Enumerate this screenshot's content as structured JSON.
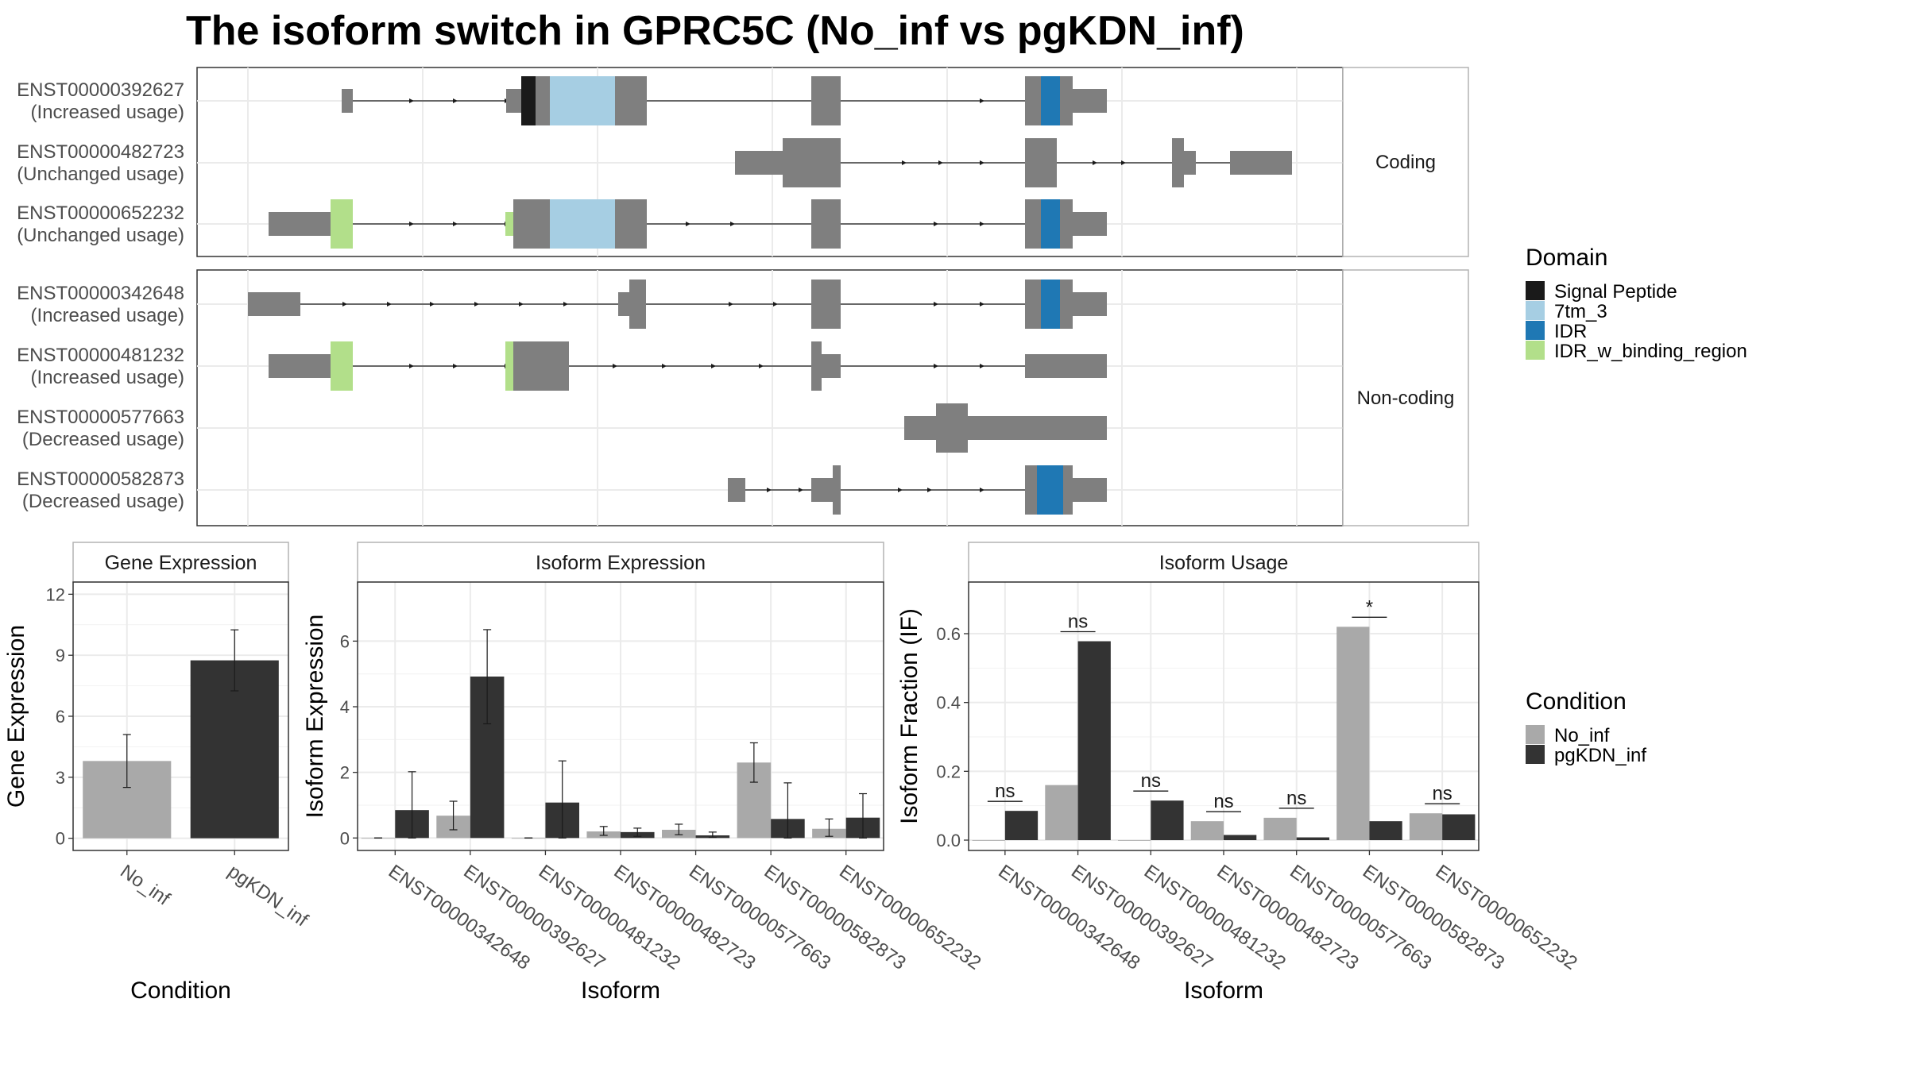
{
  "title": "The isoform switch in GPRC5C (No_inf vs pgKDN_inf)",
  "colors": {
    "signal": "#1a1a1a",
    "tm7": "#a6cee3",
    "idr": "#1f78b4",
    "idrb": "#b2df8a",
    "exon": "#7f7f7f",
    "no_inf": "#a9a9a9",
    "pg": "#333333",
    "grid": "#ebebeb",
    "frame": "#333333",
    "strip_bg": "#ffffff",
    "strip_border": "#b3b3b3",
    "text": "#1a1a1a",
    "axis_text": "#4d4d4d"
  },
  "structure": {
    "coding_strip": "Coding",
    "noncoding_strip": "Non-coding",
    "isoforms": [
      {
        "id": "ENST00000392627",
        "usage": "(Increased usage)",
        "group": "coding"
      },
      {
        "id": "ENST00000482723",
        "usage": "(Unchanged usage)",
        "group": "coding"
      },
      {
        "id": "ENST00000652232",
        "usage": "(Unchanged usage)",
        "group": "coding"
      },
      {
        "id": "ENST00000342648",
        "usage": "(Increased usage)",
        "group": "noncoding"
      },
      {
        "id": "ENST00000481232",
        "usage": "(Increased usage)",
        "group": "noncoding"
      },
      {
        "id": "ENST00000577663",
        "usage": "(Decreased usage)",
        "group": "noncoding"
      },
      {
        "id": "ENST00000582873",
        "usage": "(Decreased usage)",
        "group": "noncoding"
      }
    ]
  },
  "legend_domain": {
    "title": "Domain",
    "items": [
      {
        "label": "Signal Peptide",
        "color": "#1a1a1a"
      },
      {
        "label": "7tm_3",
        "color": "#a6cee3"
      },
      {
        "label": "IDR",
        "color": "#1f78b4"
      },
      {
        "label": "IDR_w_binding_region",
        "color": "#b2df8a"
      }
    ]
  },
  "legend_condition": {
    "title": "Condition",
    "items": [
      {
        "label": "No_inf",
        "color": "#a9a9a9"
      },
      {
        "label": "pgKDN_inf",
        "color": "#333333"
      }
    ]
  },
  "chart_data": [
    {
      "type": "bar",
      "title": "Gene Expression",
      "xlabel": "Condition",
      "ylabel": "Gene Expression",
      "categories": [
        "No_inf",
        "pgKDN_inf"
      ],
      "values": [
        3.8,
        8.75
      ],
      "errors": [
        [
          2.5,
          5.1
        ],
        [
          7.25,
          10.25
        ]
      ],
      "ylim": [
        -0.6,
        12.6
      ],
      "yticks": [
        0,
        3,
        6,
        9,
        12
      ]
    },
    {
      "type": "bar",
      "title": "Isoform Expression",
      "xlabel": "Isoform",
      "ylabel": "Isoform Expression",
      "categories": [
        "ENST00000342648",
        "ENST00000392627",
        "ENST00000481232",
        "ENST00000482723",
        "ENST00000577663",
        "ENST00000582873",
        "ENST00000652232"
      ],
      "series": [
        {
          "name": "No_inf",
          "values": [
            0.0,
            0.68,
            0.0,
            0.2,
            0.25,
            2.3,
            0.28
          ],
          "errors": [
            [
              0.0,
              0.0
            ],
            [
              0.25,
              1.12
            ],
            [
              0.0,
              0.0
            ],
            [
              0.08,
              0.35
            ],
            [
              0.1,
              0.42
            ],
            [
              1.7,
              2.9
            ],
            [
              0.05,
              0.58
            ]
          ]
        },
        {
          "name": "pgKDN_inf",
          "values": [
            0.85,
            4.92,
            1.08,
            0.18,
            0.08,
            0.58,
            0.62
          ],
          "errors": [
            [
              0.0,
              2.02
            ],
            [
              3.48,
              6.35
            ],
            [
              0.0,
              2.35
            ],
            [
              0.05,
              0.3
            ],
            [
              0.02,
              0.18
            ],
            [
              0.0,
              1.68
            ],
            [
              0.0,
              1.35
            ]
          ]
        }
      ],
      "ylim": [
        -0.38,
        7.8
      ],
      "yticks": [
        0,
        2,
        4,
        6
      ]
    },
    {
      "type": "bar",
      "title": "Isoform Usage",
      "xlabel": "Isoform",
      "ylabel": "Isoform Fraction (IF)",
      "categories": [
        "ENST00000342648",
        "ENST00000392627",
        "ENST00000481232",
        "ENST00000482723",
        "ENST00000577663",
        "ENST00000582873",
        "ENST00000652232"
      ],
      "series": [
        {
          "name": "No_inf",
          "values": [
            0.0,
            0.16,
            0.0,
            0.055,
            0.065,
            0.62,
            0.078
          ]
        },
        {
          "name": "pgKDN_inf",
          "values": [
            0.085,
            0.578,
            0.115,
            0.015,
            0.008,
            0.055,
            0.075
          ]
        }
      ],
      "significance": [
        "ns",
        "ns",
        "ns",
        "ns",
        "ns",
        "*",
        "ns"
      ],
      "ylim": [
        -0.03,
        0.75
      ],
      "yticks": [
        0.0,
        0.2,
        0.4,
        0.6
      ]
    }
  ]
}
